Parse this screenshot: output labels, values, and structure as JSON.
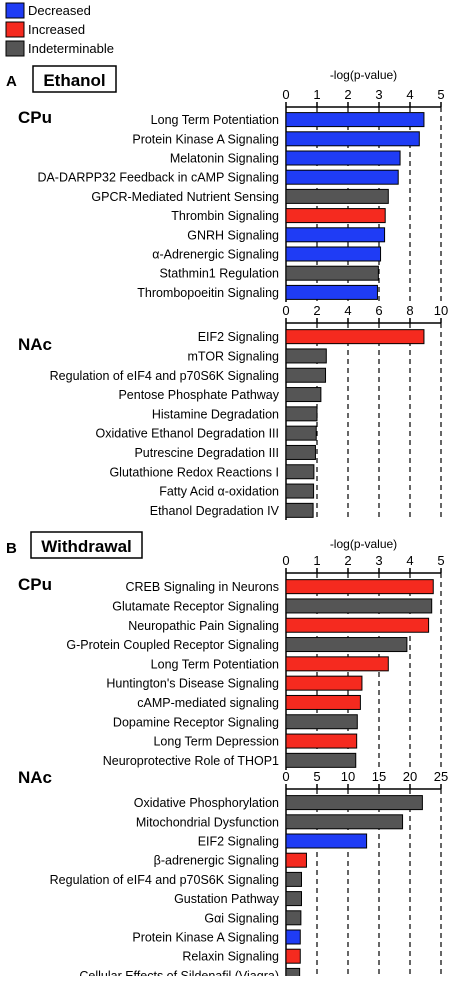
{
  "legend": {
    "entries": [
      {
        "label": "Decreased",
        "color": "#1f3cf5"
      },
      {
        "label": "Increased",
        "color": "#f52a1f"
      },
      {
        "label": "Indeterminable",
        "color": "#555555"
      }
    ]
  },
  "sections": [
    {
      "letter": "A",
      "title": "Ethanol"
    },
    {
      "letter": "B",
      "title": "Withdrawal"
    }
  ],
  "colors": {
    "decreased": "#1f3cf5",
    "increased": "#f52a1f",
    "indeterminable": "#555555"
  },
  "chart_data": [
    {
      "type": "bar",
      "orientation": "horizontal",
      "section": "A",
      "region": "CPu",
      "xlabel": "-log(p-value)",
      "xlim": [
        0,
        5
      ],
      "ticks": [
        0,
        1,
        2,
        3,
        4,
        5
      ],
      "categories": [
        "Long Term Potentiation",
        "Protein Kinase A Signaling",
        "Melatonin Signaling",
        "DA-DARPP32 Feedback in cAMP Signaling",
        "GPCR-Mediated Nutrient Sensing",
        "Thrombin Signaling",
        "GNRH Signaling",
        "α-Adrenergic Signaling",
        "Stathmin1 Regulation",
        "Thrombopoeitin Signaling"
      ],
      "values": [
        4.45,
        4.3,
        3.68,
        3.62,
        3.3,
        3.2,
        3.18,
        3.05,
        2.98,
        2.95
      ],
      "status": [
        "decreased",
        "decreased",
        "decreased",
        "decreased",
        "indeterminable",
        "increased",
        "decreased",
        "decreased",
        "indeterminable",
        "decreased"
      ]
    },
    {
      "type": "bar",
      "orientation": "horizontal",
      "section": "A",
      "region": "NAc",
      "xlabel": "",
      "xlim": [
        0,
        10
      ],
      "ticks": [
        0,
        2,
        4,
        6,
        8,
        10
      ],
      "categories": [
        "EIF2 Signaling",
        "mTOR Signaling",
        "Regulation of eIF4 and p70S6K Signaling",
        "Pentose Phosphate Pathway",
        "Histamine Degradation",
        "Oxidative Ethanol Degradation III",
        "Putrescine Degradation III",
        "Glutathione Redox Reactions I",
        "Fatty Acid α-oxidation",
        "Ethanol Degradation IV"
      ],
      "values": [
        8.9,
        2.6,
        2.55,
        2.25,
        2.0,
        1.95,
        1.9,
        1.8,
        1.78,
        1.75
      ],
      "status": [
        "increased",
        "indeterminable",
        "indeterminable",
        "indeterminable",
        "indeterminable",
        "indeterminable",
        "indeterminable",
        "indeterminable",
        "indeterminable",
        "indeterminable"
      ]
    },
    {
      "type": "bar",
      "orientation": "horizontal",
      "section": "B",
      "region": "CPu",
      "xlabel": "-log(p-value)",
      "xlim": [
        0,
        5
      ],
      "ticks": [
        0,
        1,
        2,
        3,
        4,
        5
      ],
      "categories": [
        "CREB Signaling in Neurons",
        "Glutamate Receptor Signaling",
        "Neuropathic Pain Signaling",
        "G-Protein Coupled Receptor Signaling",
        "Long Term Potentiation",
        "Huntington's Disease Signaling",
        "cAMP-mediated signaling",
        "Dopamine Receptor Signaling",
        "Long Term Depression",
        "Neuroprotective Role of THOP1"
      ],
      "values": [
        4.75,
        4.7,
        4.6,
        3.9,
        3.3,
        2.45,
        2.4,
        2.3,
        2.28,
        2.25
      ],
      "status": [
        "increased",
        "indeterminable",
        "increased",
        "indeterminable",
        "increased",
        "increased",
        "increased",
        "indeterminable",
        "increased",
        "indeterminable"
      ]
    },
    {
      "type": "bar",
      "orientation": "horizontal",
      "section": "B",
      "region": "NAc",
      "xlabel": "",
      "xlim": [
        0,
        25
      ],
      "ticks": [
        0,
        5,
        10,
        15,
        20,
        25
      ],
      "categories": [
        "Oxidative Phosphorylation",
        "Mitochondrial Dysfunction",
        "EIF2 Signaling",
        "β-adrenergic Signaling",
        "Regulation of eIF4 and p70S6K Signaling",
        "Gustation Pathway",
        "Gαi Signaling",
        "Protein Kinase A Signaling",
        "Relaxin Signaling",
        "Cellular Effects of Sildenafil (Viagra)"
      ],
      "values": [
        22.0,
        18.8,
        13.0,
        3.3,
        2.5,
        2.5,
        2.4,
        2.3,
        2.3,
        2.2
      ],
      "status": [
        "indeterminable",
        "indeterminable",
        "decreased",
        "increased",
        "indeterminable",
        "indeterminable",
        "indeterminable",
        "decreased",
        "increased",
        "indeterminable"
      ]
    }
  ]
}
